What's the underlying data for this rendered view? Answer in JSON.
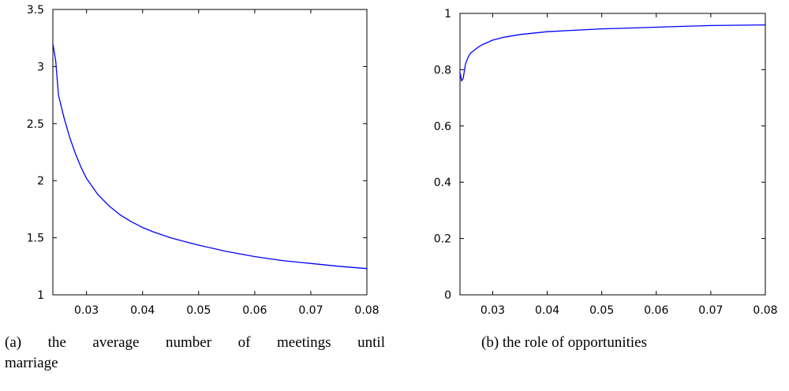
{
  "chart_data": [
    {
      "type": "line",
      "caption_line1_words": [
        "(a)",
        "the",
        "average",
        "number",
        "of",
        "meetings",
        "until"
      ],
      "caption_line2": "marriage",
      "xlim": [
        0.024,
        0.08
      ],
      "ylim": [
        1,
        3.5
      ],
      "xticks": [
        "0.03",
        "0.04",
        "0.05",
        "0.06",
        "0.07",
        "0.08"
      ],
      "xtick_values": [
        0.03,
        0.04,
        0.05,
        0.06,
        0.07,
        0.08
      ],
      "yticks": [
        "1",
        "1.5",
        "2",
        "2.5",
        "3",
        "3.5"
      ],
      "ytick_values": [
        1,
        1.5,
        2,
        2.5,
        3,
        3.5
      ],
      "grid": false,
      "line_color": "#0000ff",
      "series": [
        {
          "x": [
            0.024,
            0.0245,
            0.025,
            0.026,
            0.027,
            0.028,
            0.029,
            0.03,
            0.032,
            0.034,
            0.036,
            0.038,
            0.04,
            0.042,
            0.045,
            0.048,
            0.05,
            0.055,
            0.06,
            0.065,
            0.07,
            0.075,
            0.08
          ],
          "y": [
            3.2,
            3.05,
            2.75,
            2.55,
            2.38,
            2.24,
            2.12,
            2.02,
            1.88,
            1.78,
            1.7,
            1.64,
            1.59,
            1.55,
            1.5,
            1.46,
            1.435,
            1.38,
            1.335,
            1.3,
            1.275,
            1.25,
            1.23
          ]
        }
      ]
    },
    {
      "type": "line",
      "caption": "(b) the role of opportunities",
      "xlim": [
        0.024,
        0.08
      ],
      "ylim": [
        0,
        1
      ],
      "xticks": [
        "0.03",
        "0.04",
        "0.05",
        "0.06",
        "0.07",
        "0.08"
      ],
      "xtick_values": [
        0.03,
        0.04,
        0.05,
        0.06,
        0.07,
        0.08
      ],
      "yticks": [
        "0",
        "0.2",
        "0.4",
        "0.6",
        "0.8",
        "1"
      ],
      "ytick_values": [
        0,
        0.2,
        0.4,
        0.6,
        0.8,
        1
      ],
      "grid": false,
      "line_color": "#0000ff",
      "series": [
        {
          "x": [
            0.024,
            0.0243,
            0.0246,
            0.025,
            0.0255,
            0.026,
            0.027,
            0.028,
            0.03,
            0.032,
            0.035,
            0.04,
            0.045,
            0.05,
            0.055,
            0.06,
            0.065,
            0.07,
            0.075,
            0.08
          ],
          "y": [
            0.79,
            0.76,
            0.77,
            0.82,
            0.845,
            0.86,
            0.875,
            0.888,
            0.905,
            0.915,
            0.925,
            0.935,
            0.94,
            0.945,
            0.948,
            0.951,
            0.954,
            0.957,
            0.958,
            0.959
          ]
        }
      ]
    }
  ]
}
